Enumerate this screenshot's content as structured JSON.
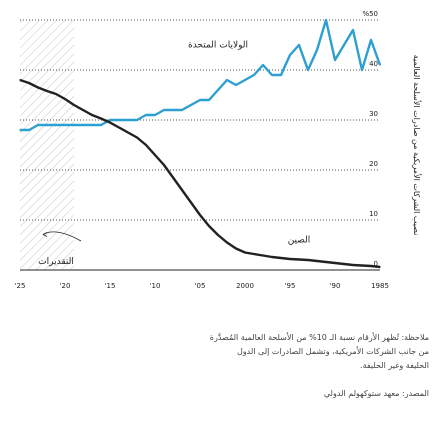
{
  "chart_data": {
    "type": "line",
    "title": "",
    "xlabel": "",
    "ylabel": "نصيب الشركات الأمريكية من صادرات الأسلحة العالمية",
    "x": [
      1985,
      1986,
      1987,
      1988,
      1989,
      1990,
      1991,
      1992,
      1993,
      1994,
      1995,
      1996,
      1997,
      1998,
      1999,
      2000,
      2001,
      2002,
      2003,
      2004,
      2005,
      2006,
      2007,
      2008,
      2009,
      2010,
      2011,
      2012,
      2013,
      2014,
      2015,
      2016,
      2017,
      2018,
      2019,
      2020,
      2021,
      2022,
      2023,
      2024,
      2025
    ],
    "x_tick_labels": [
      {
        "x": 1985,
        "label": "1985"
      },
      {
        "x": 1990,
        "label": "'90"
      },
      {
        "x": 1995,
        "label": "'95"
      },
      {
        "x": 2000,
        "label": "2000"
      },
      {
        "x": 2005,
        "label": "'05"
      },
      {
        "x": 2010,
        "label": "'10"
      },
      {
        "x": 2015,
        "label": "'15"
      },
      {
        "x": 2020,
        "label": "'20"
      },
      {
        "x": 2025,
        "label": "'25"
      }
    ],
    "y_ticks": [
      {
        "value": 0,
        "label": "0"
      },
      {
        "value": 10,
        "label": "10"
      },
      {
        "value": 20,
        "label": "20"
      },
      {
        "value": 30,
        "label": "30"
      },
      {
        "value": 40,
        "label": "40"
      },
      {
        "value": 50,
        "label": "%50"
      }
    ],
    "ylim": [
      0,
      50
    ],
    "x_reversed": true,
    "grid": "horizontal dotted",
    "forecast_x": [
      2019,
      2025
    ],
    "series": [
      {
        "name": "الولايات المتحدة",
        "color": "#2e9fd1",
        "values": [
          41,
          46,
          40,
          48,
          45,
          42,
          50,
          44,
          40,
          45,
          43,
          39,
          39,
          41,
          39,
          38,
          37,
          38,
          36,
          34,
          34,
          33,
          32,
          32,
          32,
          31,
          31,
          30,
          30,
          30,
          30,
          29,
          29,
          29,
          29,
          29,
          29,
          29,
          29,
          28,
          28
        ]
      },
      {
        "name": "الصين",
        "color": "#222222",
        "values": [
          0.6,
          0.8,
          0.9,
          1.0,
          1.2,
          1.4,
          1.6,
          1.8,
          2.0,
          2.1,
          2.2,
          2.4,
          2.6,
          2.9,
          3.2,
          3.5,
          4.3,
          5.5,
          7.0,
          8.8,
          11.0,
          13.5,
          16.0,
          18.5,
          21.0,
          23.0,
          25.0,
          26.5,
          27.5,
          28.5,
          29.5,
          30.3,
          31.0,
          32.0,
          33.0,
          34.2,
          35.2,
          35.8,
          36.5,
          37.4,
          38.0
        ]
      }
    ],
    "annotations": {
      "forecast": "التقديرات"
    }
  },
  "footer": {
    "note_1": "ملاحظة: تُظهر الأرقام نسبة الـ 10% من الأسلحة العالمية المُصدَّرة",
    "note_2": "من جانب الشركات الأمريكية، وتشمل الصادرات إلى الدول",
    "note_3": "الحليفة وغير الحليفة.",
    "source": "المصدر: معهد ستوكهولم الدولي"
  }
}
